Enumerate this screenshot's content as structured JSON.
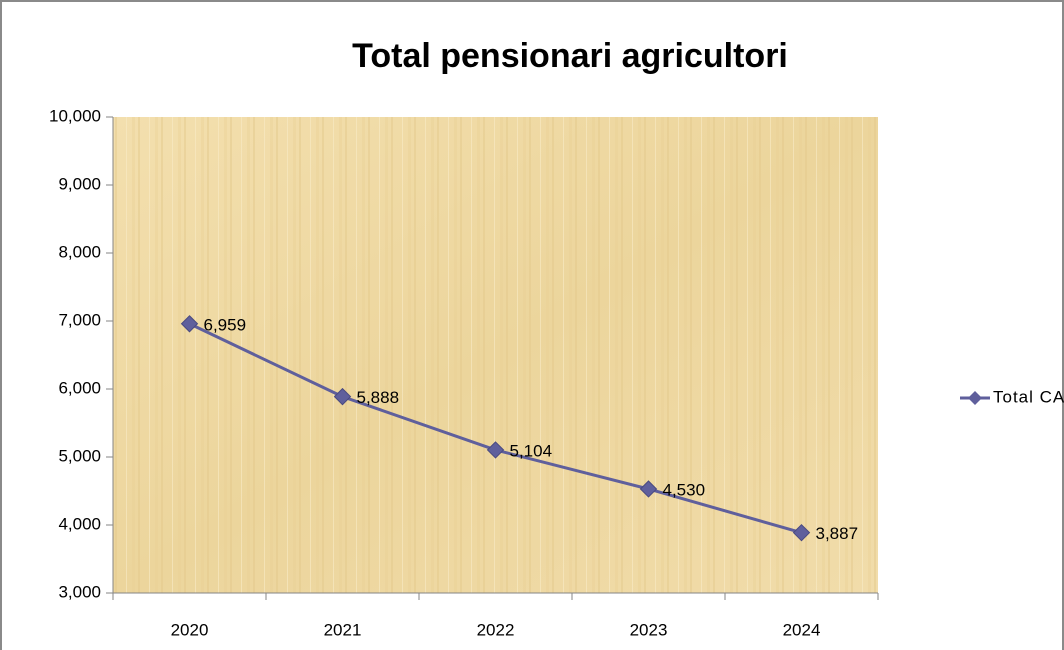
{
  "chart_data": {
    "type": "line",
    "title": "Total pensionari agricultori",
    "categories": [
      "2020",
      "2021",
      "2022",
      "2023",
      "2024"
    ],
    "series": [
      {
        "name": "Total CAP",
        "color": "#5f5f9c",
        "values": [
          6959,
          5888,
          5104,
          4530,
          3887
        ],
        "value_labels": [
          "6,959",
          "5,888",
          "5,104",
          "4,530",
          "3,887"
        ]
      }
    ],
    "ylim": [
      3000,
      10000
    ],
    "yticks": [
      {
        "value": 3000,
        "label": "3,000"
      },
      {
        "value": 4000,
        "label": "4,000"
      },
      {
        "value": 5000,
        "label": "5,000"
      },
      {
        "value": 6000,
        "label": "6,000"
      },
      {
        "value": 7000,
        "label": "7,000"
      },
      {
        "value": 8000,
        "label": "8,000"
      },
      {
        "value": 9000,
        "label": "9,000"
      },
      {
        "value": 10000,
        "label": "10,000"
      }
    ],
    "grid": false,
    "legend": "right"
  }
}
